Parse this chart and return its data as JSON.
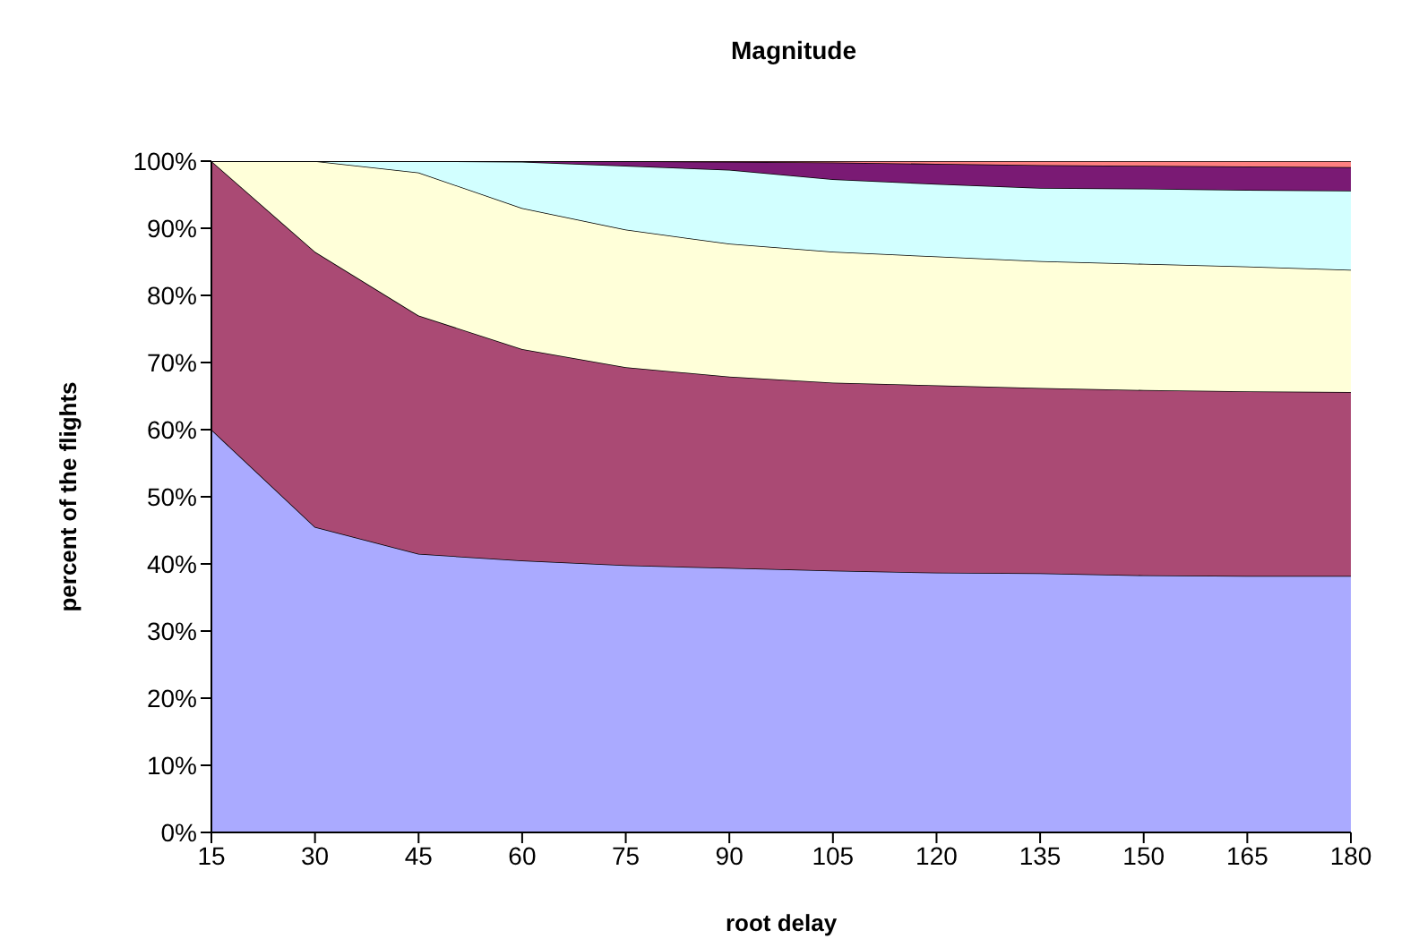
{
  "chart_data": {
    "type": "area",
    "stacked": true,
    "title": "Magnitude",
    "xlabel": "root delay",
    "ylabel": "percent of the flights",
    "x": [
      15,
      30,
      45,
      60,
      75,
      90,
      105,
      120,
      135,
      150,
      165,
      180
    ],
    "xlim": [
      15,
      180
    ],
    "xticks": [
      15,
      30,
      45,
      60,
      75,
      90,
      105,
      120,
      135,
      150,
      165,
      180
    ],
    "ylim": [
      0,
      100
    ],
    "yticks": [
      {
        "value": 0,
        "label": "0%"
      },
      {
        "value": 10,
        "label": "10%"
      },
      {
        "value": 20,
        "label": "20%"
      },
      {
        "value": 30,
        "label": "30%"
      },
      {
        "value": 40,
        "label": "40%"
      },
      {
        "value": 50,
        "label": "50%"
      },
      {
        "value": 60,
        "label": "60%"
      },
      {
        "value": 70,
        "label": "70%"
      },
      {
        "value": 80,
        "label": "80%"
      },
      {
        "value": 90,
        "label": "90%"
      },
      {
        "value": 100,
        "label": "100%"
      }
    ],
    "grid": false,
    "legend": false,
    "series": [
      {
        "color": "#aaaaff",
        "values": [
          60,
          45.5,
          41.5,
          40.5,
          39.8,
          39.4,
          39,
          38.7,
          38.6,
          38.3,
          38.2,
          38.2
        ]
      },
      {
        "color": "#aa4a74",
        "values": [
          40,
          41,
          35.5,
          31.5,
          29.5,
          28.5,
          28,
          27.9,
          27.6,
          27.6,
          27.5,
          27.4
        ]
      },
      {
        "color": "#ffffd9",
        "values": [
          0,
          13.5,
          21.3,
          21,
          20.5,
          19.8,
          19.5,
          19.2,
          18.9,
          18.8,
          18.6,
          18.2
        ]
      },
      {
        "color": "#d2ffff",
        "values": [
          0,
          0,
          1.7,
          6.9,
          9.5,
          11,
          10.8,
          10.8,
          10.9,
          11.2,
          11.4,
          11.8
        ]
      },
      {
        "color": "#7a1a74",
        "values": [
          0,
          0,
          0,
          0.1,
          0.7,
          1.2,
          2.5,
          3,
          3.4,
          3.4,
          3.5,
          3.5
        ]
      },
      {
        "color": "#ff8080",
        "values": [
          0,
          0,
          0,
          0,
          0,
          0.1,
          0.2,
          0.4,
          0.6,
          0.7,
          0.8,
          0.9
        ]
      }
    ]
  }
}
